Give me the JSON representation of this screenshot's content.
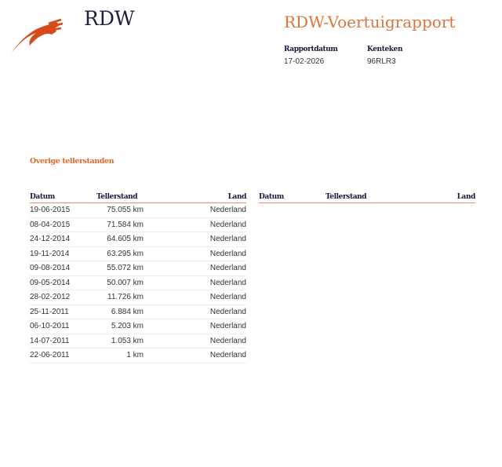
{
  "header": {
    "brand": "RDW",
    "title": "RDW-Voertuigrapport",
    "report_date_label": "Rapportdatum",
    "report_date": "17-02-2026",
    "plate_label": "Kenteken",
    "plate": "96RLR3"
  },
  "section_title": "Overige tellerstanden",
  "columns": [
    "Datum",
    "Tellerstand",
    "Land"
  ],
  "rows": [
    [
      "19-06-2015",
      "75.055 km",
      "Nederland"
    ],
    [
      "08-04-2015",
      "71.584 km",
      "Nederland"
    ],
    [
      "24-12-2014",
      "64.605 km",
      "Nederland"
    ],
    [
      "19-11-2014",
      "63.295 km",
      "Nederland"
    ],
    [
      "09-08-2014",
      "55.072 km",
      "Nederland"
    ],
    [
      "09-05-2014",
      "50.007 km",
      "Nederland"
    ],
    [
      "28-02-2012",
      "11.726 km",
      "Nederland"
    ],
    [
      "25-11-2011",
      "6.884 km",
      "Nederland"
    ],
    [
      "06-10-2011",
      "5.203 km",
      "Nederland"
    ],
    [
      "14-07-2011",
      "1.053 km",
      "Nederland"
    ],
    [
      "22-06-2011",
      "1 km",
      "Nederland"
    ]
  ],
  "colors": {
    "accent": "#e0743a",
    "logo": "#d84a1b",
    "navy": "#15183a"
  }
}
